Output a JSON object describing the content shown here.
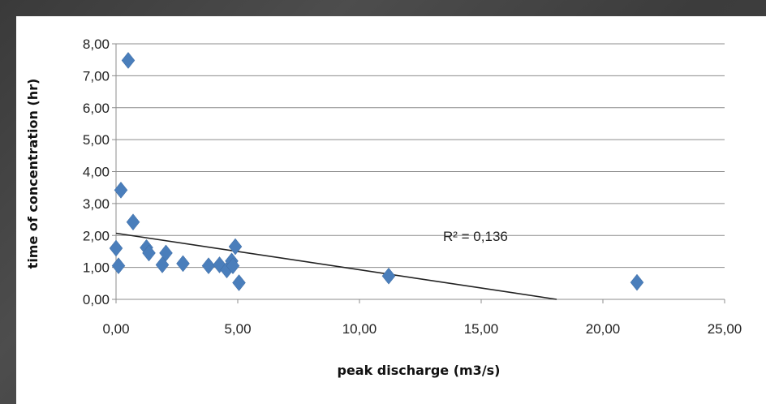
{
  "chart_data": {
    "type": "scatter",
    "title": "",
    "xlabel": "peak discharge (m3/s)",
    "ylabel": "time of concentration (hr)",
    "xlim": [
      0,
      25
    ],
    "ylim": [
      0,
      8
    ],
    "xticks": [
      "0,00",
      "5,00",
      "10,00",
      "15,00",
      "20,00",
      "25,00"
    ],
    "yticks": [
      "0,00",
      "1,00",
      "2,00",
      "3,00",
      "4,00",
      "5,00",
      "6,00",
      "7,00",
      "8,00"
    ],
    "grid": "horizontal",
    "marker": "diamond",
    "series_color": "#4a7ebb",
    "points": [
      {
        "x": 0.5,
        "y": 7.48
      },
      {
        "x": 0.2,
        "y": 3.42
      },
      {
        "x": 0.7,
        "y": 2.42
      },
      {
        "x": 0.0,
        "y": 1.6
      },
      {
        "x": 0.1,
        "y": 1.05
      },
      {
        "x": 1.25,
        "y": 1.62
      },
      {
        "x": 1.35,
        "y": 1.45
      },
      {
        "x": 2.05,
        "y": 1.45
      },
      {
        "x": 1.9,
        "y": 1.08
      },
      {
        "x": 2.75,
        "y": 1.12
      },
      {
        "x": 3.8,
        "y": 1.05
      },
      {
        "x": 4.25,
        "y": 1.08
      },
      {
        "x": 4.55,
        "y": 0.92
      },
      {
        "x": 4.75,
        "y": 1.2
      },
      {
        "x": 4.8,
        "y": 1.05
      },
      {
        "x": 4.9,
        "y": 1.65
      },
      {
        "x": 5.05,
        "y": 0.52
      },
      {
        "x": 11.2,
        "y": 0.73
      },
      {
        "x": 21.4,
        "y": 0.53
      }
    ],
    "trendline": {
      "x": [
        0.0,
        18.1
      ],
      "y": [
        2.07,
        0.0
      ],
      "color": "#222222"
    },
    "annotation": "R² = 0,136"
  }
}
